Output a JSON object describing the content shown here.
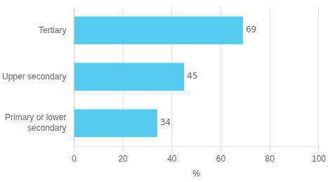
{
  "chart_data": {
    "type": "bar",
    "orientation": "horizontal",
    "categories": [
      "Primary or lower\nsecondary",
      "Upper secondary",
      "Tertiary"
    ],
    "values": [
      34,
      45,
      69
    ],
    "color": "#55ccee",
    "xlabel": "%",
    "xlim": [
      0,
      100
    ],
    "xticks": [
      0,
      20,
      40,
      60,
      80,
      100
    ],
    "grid": true,
    "data_labels": true
  }
}
